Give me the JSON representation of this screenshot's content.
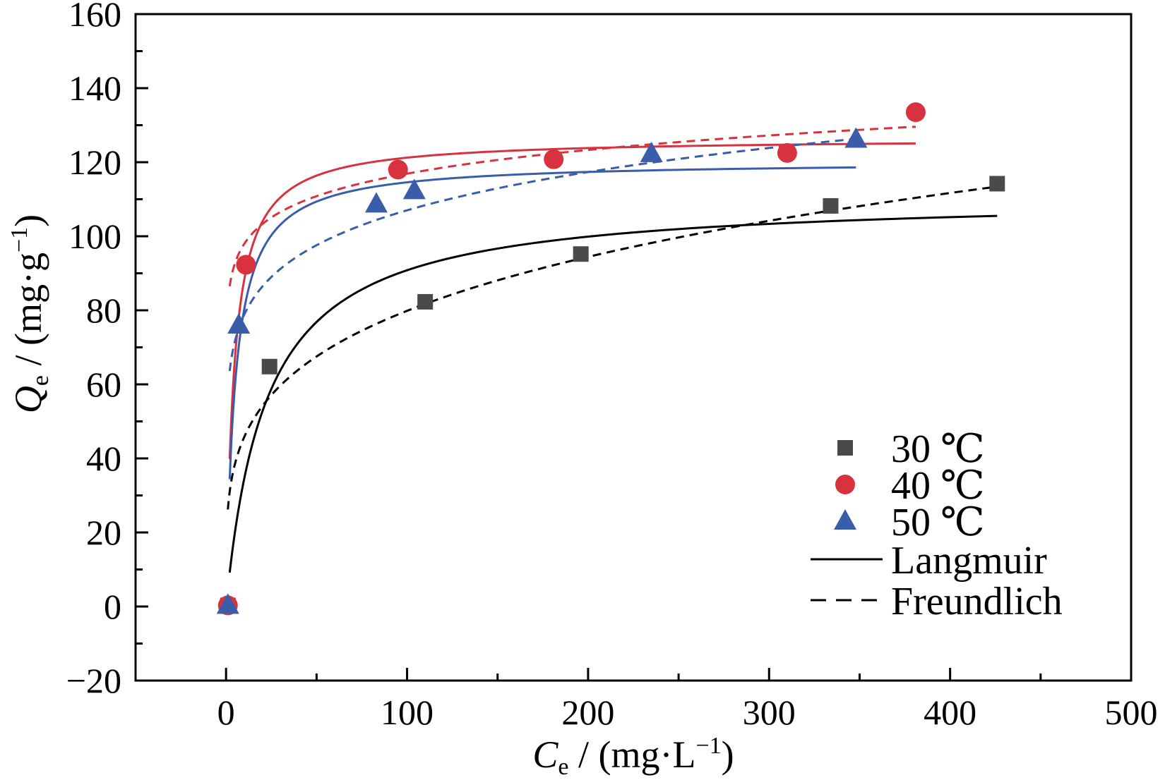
{
  "chart_data": {
    "type": "scatter",
    "title": "",
    "xlabel": {
      "symbol": "C",
      "subscript": "e",
      "rest": " / (mg·L",
      "sup": "−1",
      "close": ")"
    },
    "ylabel": {
      "symbol": "Q",
      "subscript": "e",
      "rest": " / (mg·g",
      "sup": "−1",
      "close": ")"
    },
    "xlim": [
      -50,
      500
    ],
    "ylim": [
      -20,
      160
    ],
    "x_ticks": [
      0,
      100,
      200,
      300,
      400,
      500
    ],
    "x_tick_labels": [
      "0",
      "100",
      "200",
      "300",
      "400",
      "500"
    ],
    "x_minor_step": 50,
    "y_ticks": [
      -20,
      0,
      20,
      40,
      60,
      80,
      100,
      120,
      140,
      160
    ],
    "y_tick_labels": [
      "−20",
      "0",
      "20",
      "40",
      "60",
      "80",
      "100",
      "120",
      "140",
      "160"
    ],
    "y_minor_step": 10,
    "grid": false,
    "legend_position": "bottom-right",
    "series": [
      {
        "name": "30 ℃",
        "color": "#4a4a4a",
        "marker": "square",
        "points": [
          [
            1,
            0.3
          ],
          [
            24,
            64.8
          ],
          [
            110,
            82.3
          ],
          [
            196,
            95.2
          ],
          [
            334,
            108.2
          ],
          [
            426,
            114.2
          ]
        ],
        "langmuir": {
          "qm": 111,
          "KL": 0.045,
          "x_range": [
            2,
            426
          ]
        },
        "freundlich": {
          "KF": 26.2,
          "n": 0.242,
          "x_range": [
            1,
            426
          ]
        }
      },
      {
        "name": "40 ℃",
        "color": "#d9323f",
        "marker": "circle",
        "points": [
          [
            1,
            0.3
          ],
          [
            11,
            92.3
          ],
          [
            95,
            118.0
          ],
          [
            181,
            120.8
          ],
          [
            310,
            122.5
          ],
          [
            381,
            133.5
          ]
        ],
        "langmuir": {
          "qm": 126.5,
          "KL": 0.23,
          "x_range": [
            2,
            381
          ]
        },
        "freundlich": {
          "KF": 82,
          "n": 0.077,
          "x_range": [
            2,
            381
          ]
        }
      },
      {
        "name": "50 ℃",
        "color": "#3a5daa",
        "marker": "triangle",
        "points": [
          [
            1,
            0.3
          ],
          [
            7,
            76.0
          ],
          [
            83,
            108.7
          ],
          [
            104,
            112.3
          ],
          [
            235,
            122.3
          ],
          [
            348,
            126.2
          ]
        ],
        "langmuir": {
          "qm": 120.3,
          "KL": 0.2,
          "x_range": [
            2,
            348
          ]
        },
        "freundlich": {
          "KF": 58,
          "n": 0.133,
          "x_range": [
            2,
            348
          ]
        }
      }
    ],
    "legend": {
      "models": [
        {
          "name": "Langmuir",
          "style": "solid"
        },
        {
          "name": "Freundlich",
          "style": "dashed"
        }
      ]
    }
  }
}
